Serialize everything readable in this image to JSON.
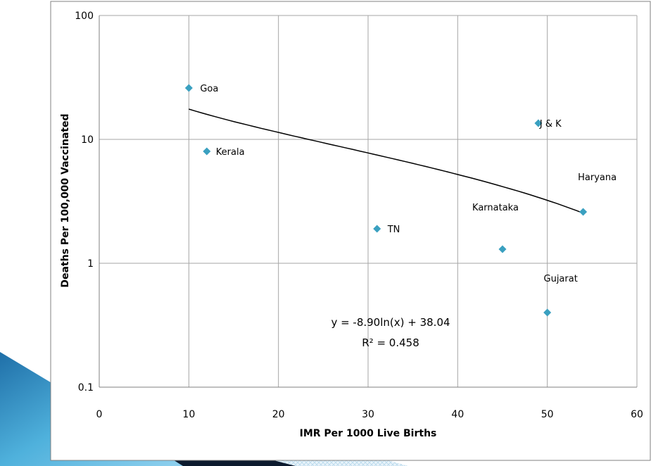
{
  "colors": {
    "marker": "#3aa0c0",
    "trendline": "#000000",
    "grid": "#a6a6a6",
    "frame": "#808080",
    "decor_dark": "#0c1a2e",
    "decor_blue": "#3f9fcf",
    "decor_light": "#cfe6f3"
  },
  "chart_data": {
    "type": "scatter",
    "title": "",
    "xlabel": "IMR Per 1000 Live Births",
    "ylabel": "Deaths Per 100,000 Vaccinated",
    "xlim": [
      0,
      60
    ],
    "ylim": [
      0.1,
      100
    ],
    "yscale": "log",
    "grid": true,
    "marker": "diamond",
    "x_ticks": [
      "0",
      "10",
      "20",
      "30",
      "40",
      "50",
      "60"
    ],
    "y_ticks": [
      "0.1",
      "1",
      "10",
      "100"
    ],
    "points": [
      {
        "label": "Goa",
        "x": 10,
        "y": 26
      },
      {
        "label": "Kerala",
        "x": 12,
        "y": 8
      },
      {
        "label": "TN",
        "x": 31,
        "y": 1.9
      },
      {
        "label": "Karnataka",
        "x": 45,
        "y": 1.3
      },
      {
        "label": "J & K",
        "x": 49,
        "y": 13.5
      },
      {
        "label": "Gujarat",
        "x": 50,
        "y": 0.4
      },
      {
        "label": "Haryana",
        "x": 54,
        "y": 2.6
      }
    ],
    "trendline": {
      "type": "logarithmic",
      "a": -8.9,
      "b": 38.04,
      "x_range": [
        10,
        54
      ],
      "equation": "y = -8.90ln(x) + 38.04",
      "r2": "R² = 0.458"
    }
  }
}
